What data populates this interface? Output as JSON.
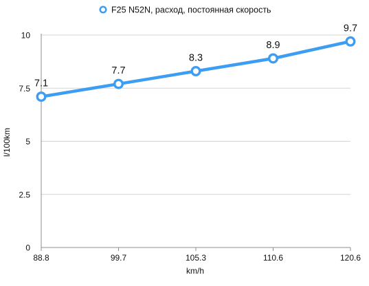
{
  "chart_data": {
    "type": "line",
    "title": "",
    "xlabel": "km/h",
    "ylabel": "l/100km",
    "categories": [
      "88.8",
      "99.7",
      "105.3",
      "110.6",
      "120.6"
    ],
    "ylim": [
      0,
      10
    ],
    "yticks": [
      0,
      2.5,
      5,
      7.5,
      10
    ],
    "ytick_labels": [
      "0",
      "2.5",
      "5",
      "7.5",
      "10"
    ],
    "grid": true,
    "legend_position": "top",
    "series": [
      {
        "name": "F25 N52N, расход, постоянная скорость",
        "values": [
          7.1,
          7.7,
          8.3,
          8.9,
          9.7
        ],
        "labels": [
          "7.1",
          "7.7",
          "8.3",
          "8.9",
          "9.7"
        ],
        "color": "#3d9df2"
      }
    ],
    "colors": {
      "grid": "#d4d4d4",
      "axis": "#8c8c8c",
      "tick_text": "#111111",
      "data_label_text": "#111111",
      "marker_fill": "#ffffff"
    }
  }
}
